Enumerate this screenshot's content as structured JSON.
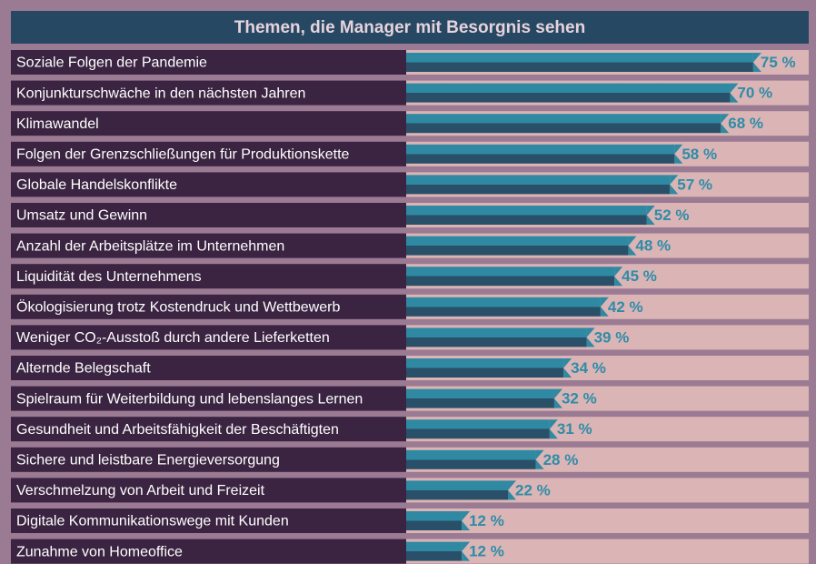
{
  "chart_data": {
    "type": "barh",
    "title": "Themen, die Manager mit Besorgnis sehen",
    "categories": [
      "Soziale Folgen der Pandemie",
      "Konjunkturschwäche in den nächsten Jahren",
      "Klimawandel",
      "Folgen der Grenzschließungen für Produktionskette",
      "Globale Handelskonflikte",
      "Umsatz und Gewinn",
      "Anzahl der Arbeitsplätze im Unternehmen",
      "Liquidität des Unternehmens",
      "Ökologisierung trotz Kostendruck und Wettbewerb",
      "Weniger CO₂-Ausstoß durch andere Lieferketten",
      "Alternde Belegschaft",
      "Spielraum für Weiterbildung und lebenslanges Lernen",
      "Gesundheit und Arbeitsfähigkeit der Beschäftigten",
      "Sichere und leistbare Energieversorgung",
      "Verschmelzung von Arbeit und Freizeit",
      "Digitale Kommunikationswege mit Kunden",
      "Zunahme von Homeoffice"
    ],
    "values": [
      75,
      70,
      68,
      58,
      57,
      52,
      48,
      45,
      42,
      39,
      34,
      32,
      31,
      28,
      22,
      12,
      12
    ],
    "value_labels": [
      "75 %",
      "70 %",
      "68 %",
      "58 %",
      "57 %",
      "52 %",
      "48 %",
      "45 %",
      "42 %",
      "39 %",
      "34 %",
      "32 %",
      "31 %",
      "28 %",
      "22 %",
      "12 %",
      "12 %"
    ],
    "color": "#2f89a2",
    "xlim": [
      0,
      87
    ]
  }
}
